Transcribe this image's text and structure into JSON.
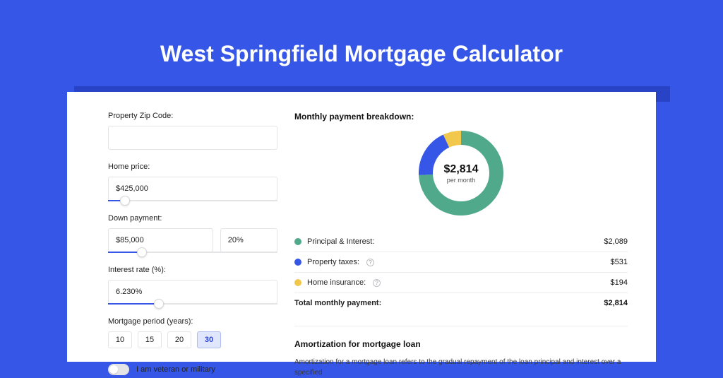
{
  "page": {
    "title": "West Springfield Mortgage Calculator",
    "background": "#3556e6"
  },
  "form": {
    "zip": {
      "label": "Property Zip Code:",
      "value": ""
    },
    "price": {
      "label": "Home price:",
      "value": "$425,000",
      "slider_pct": 10
    },
    "down": {
      "label": "Down payment:",
      "value": "$85,000",
      "pct_value": "20%",
      "slider_pct": 20
    },
    "rate": {
      "label": "Interest rate (%):",
      "value": "6.230%",
      "slider_pct": 30
    },
    "period": {
      "label": "Mortgage period (years):",
      "options": [
        "10",
        "15",
        "20",
        "30"
      ],
      "selected": "30"
    },
    "veteran": {
      "label": "I am veteran or military",
      "checked": false
    }
  },
  "breakdown": {
    "title": "Monthly payment breakdown:",
    "center_value": "$2,814",
    "center_sub": "per month",
    "items": [
      {
        "key": "principal",
        "label": "Principal & Interest:",
        "value": "$2,089",
        "num": 2089,
        "color": "#50a98a",
        "info": false
      },
      {
        "key": "taxes",
        "label": "Property taxes:",
        "value": "$531",
        "num": 531,
        "color": "#3556e6",
        "info": true
      },
      {
        "key": "insurance",
        "label": "Home insurance:",
        "value": "$194",
        "num": 194,
        "color": "#f1c84c",
        "info": true
      }
    ],
    "total": {
      "label": "Total monthly payment:",
      "value": "$2,814",
      "num": 2814
    }
  },
  "amortization": {
    "title": "Amortization for mortgage loan",
    "text": "Amortization for a mortgage loan refers to the gradual repayment of the loan principal and interest over a specified"
  },
  "donut": {
    "radius": 48,
    "stroke": 24,
    "start_angle_deg": -90
  }
}
